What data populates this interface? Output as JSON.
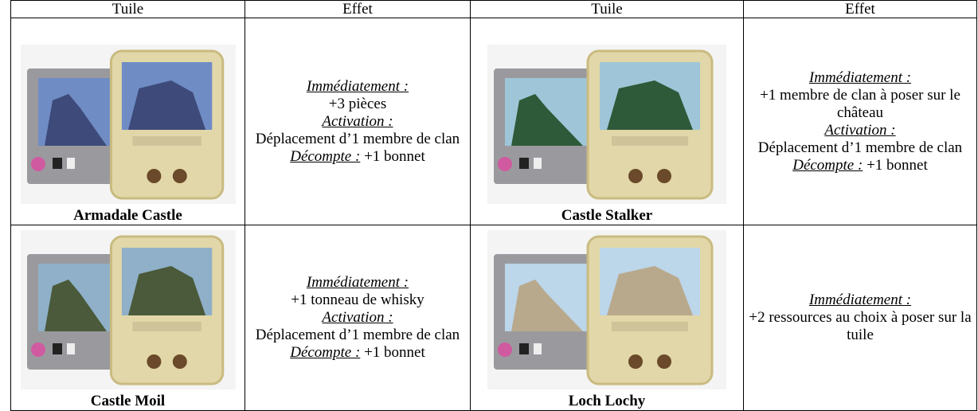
{
  "table": {
    "header": [
      "Tuile",
      "Effet",
      "Tuile",
      "Effet"
    ],
    "rows": [
      [
        {
          "name": "Armadale Castle",
          "effect": [
            {
              "heading": "Immédiatement :"
            },
            {
              "text": "+3 pièces"
            },
            {
              "heading": "Activation :"
            },
            {
              "text": "Déplacement d’1 membre de clan"
            },
            {
              "heading": "Décompte :",
              "text": "+1 bonnet"
            }
          ]
        },
        {
          "name": "Castle Stalker",
          "effect": [
            {
              "heading": "Immédiatement :"
            },
            {
              "text": "+1 membre de clan à poser sur le château"
            },
            {
              "heading": "Activation :"
            },
            {
              "text": "Déplacement d’1 membre de clan"
            },
            {
              "heading": "Décompte :",
              "text": "+1 bonnet"
            }
          ]
        }
      ],
      [
        {
          "name": "Castle Moil",
          "effect": [
            {
              "heading": "Immédiatement :"
            },
            {
              "text": "+1 tonneau de whisky"
            },
            {
              "heading": "Activation :"
            },
            {
              "text": "Déplacement d’1 membre de clan"
            },
            {
              "heading": "Décompte :",
              "text": "+1 bonnet"
            }
          ]
        },
        {
          "name": "Loch Lochy",
          "effect": [
            {
              "heading": "Immédiatement :"
            },
            {
              "text": "+2 ressources au choix à poser sur la tuile"
            }
          ]
        }
      ]
    ]
  }
}
